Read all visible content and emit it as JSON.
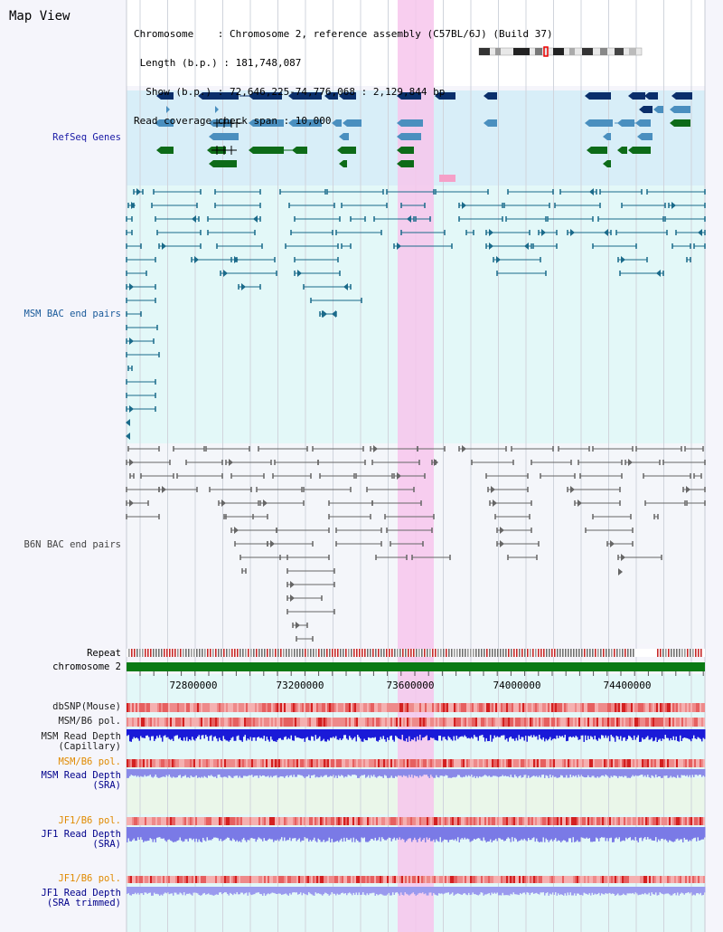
{
  "title": "Map View",
  "header": {
    "chromosome": "Chromosome    : Chromosome 2, reference assembly (C57BL/6J) (Build 37)",
    "length": " Length (b.p.) : 181,748,087",
    "show": "  Show (b.p.) : 72,646,225-74,776,068 : 2,129,844 bp",
    "coverage": "Read coverage check span : 10,000"
  },
  "tracks": {
    "refseq": "RefSeq Genes",
    "msm_bac": "MSM BAC end pairs",
    "b6n_bac": "B6N BAC end pairs",
    "repeat": "Repeat",
    "chromosome": "chromosome 2",
    "dbsnp": "dbSNP(Mouse)",
    "msm_b6_pol_1": "MSM/B6 pol.",
    "msm_depth_cap": "MSM Read Depth\n(Capillary)",
    "msm_b6_pol_2": "MSM/B6 pol.",
    "msm_depth_sra": "MSM Read Depth\n(SRA)",
    "jf1_b6_pol_1": "JF1/B6 pol.",
    "jf1_depth_sra": "JF1 Read Depth\n(SRA)",
    "jf1_b6_pol_2": "JF1/B6 pol.",
    "jf1_depth_trim": "JF1 Read Depth\n(SRA trimmed)"
  },
  "axis": {
    "ticks": [
      "72800000",
      "73200000",
      "73600000",
      "74000000",
      "74400000"
    ]
  },
  "colors": {
    "refseq_dark": "#0a2f6b",
    "refseq_light": "#4a8fbf",
    "refseq_green": "#0d6b18",
    "msm_bac": "#1a6a8a",
    "b6n_bac": "#666666",
    "highlight": "#f7c6ec",
    "msm_label": "#1a5a9a",
    "pol_label": "#e08a00",
    "depth_label": "#00008b"
  }
}
